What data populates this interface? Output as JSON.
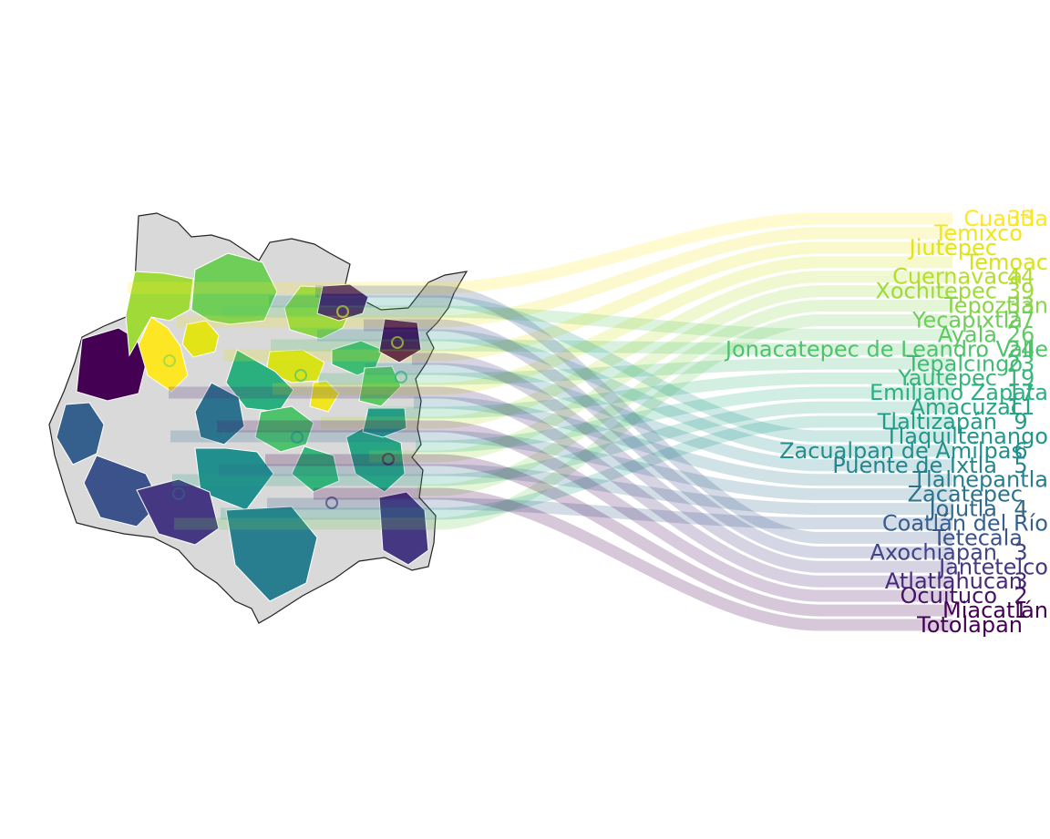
{
  "chart_data": {
    "type": "choropleth-bump",
    "ordering": "ascending",
    "na_color": "#d9d9d9",
    "border_color": "#ffffff",
    "state_outline_color": "#222222",
    "rows": [
      {
        "name": "Cuautla",
        "value": "33",
        "color": "#fde725"
      },
      {
        "name": "Temixco",
        "value": "",
        "color": "#f0e51f"
      },
      {
        "name": "Jiutepec",
        "value": "",
        "color": "#e3e418"
      },
      {
        "name": "Temoac",
        "value": "",
        "color": "#d8e219"
      },
      {
        "name": "Cuernavaca",
        "value": "44",
        "color": "#b5de2b"
      },
      {
        "name": "Xochitepec",
        "value": "39",
        "color": "#a0da39"
      },
      {
        "name": "Tepoztlán",
        "value": "33",
        "color": "#8ad547"
      },
      {
        "name": "Yecapixtla",
        "value": "27",
        "color": "#6ece58"
      },
      {
        "name": "Ayala",
        "value": "26",
        "color": "#5ec962"
      },
      {
        "name": "Jonacatepec de Leandro Valle",
        "value": "24",
        "color": "#4ec36b"
      },
      {
        "name": "Tepalcingo",
        "value": "23",
        "color": "#3fbc73"
      },
      {
        "name": "Yautepec",
        "value": "19",
        "color": "#35b779"
      },
      {
        "name": "Emiliano Zapata",
        "value": "17",
        "color": "#2ab07f"
      },
      {
        "name": "Amacuzac",
        "value": "11",
        "color": "#25a584"
      },
      {
        "name": "Tlaltizapán",
        "value": "9",
        "color": "#1f9e89"
      },
      {
        "name": "Tlaquiltenango",
        "value": "",
        "color": "#1f968b"
      },
      {
        "name": "Zacualpan de Amilpas",
        "value": "6",
        "color": "#218f8d"
      },
      {
        "name": "Puente de Ixtla",
        "value": "5",
        "color": "#25858e"
      },
      {
        "name": "Tlalnepantla",
        "value": "",
        "color": "#287d8e"
      },
      {
        "name": "Zacatepec",
        "value": "",
        "color": "#2c728e"
      },
      {
        "name": "Jojutla",
        "value": "4",
        "color": "#31688e"
      },
      {
        "name": "Coatlán del Río",
        "value": "",
        "color": "#355f8d"
      },
      {
        "name": "Tetecala",
        "value": "",
        "color": "#3b528b"
      },
      {
        "name": "Axochiapan",
        "value": "3",
        "color": "#414487"
      },
      {
        "name": "Jantetelco",
        "value": "",
        "color": "#453781"
      },
      {
        "name": "Atlatlahucan",
        "value": "3",
        "color": "#482878"
      },
      {
        "name": "Ocuituco",
        "value": "2",
        "color": "#471365"
      },
      {
        "name": "Miacatlán",
        "value": "1",
        "color": "#440154"
      },
      {
        "name": "Totolapan",
        "value": "",
        "color": "#440154"
      }
    ]
  }
}
